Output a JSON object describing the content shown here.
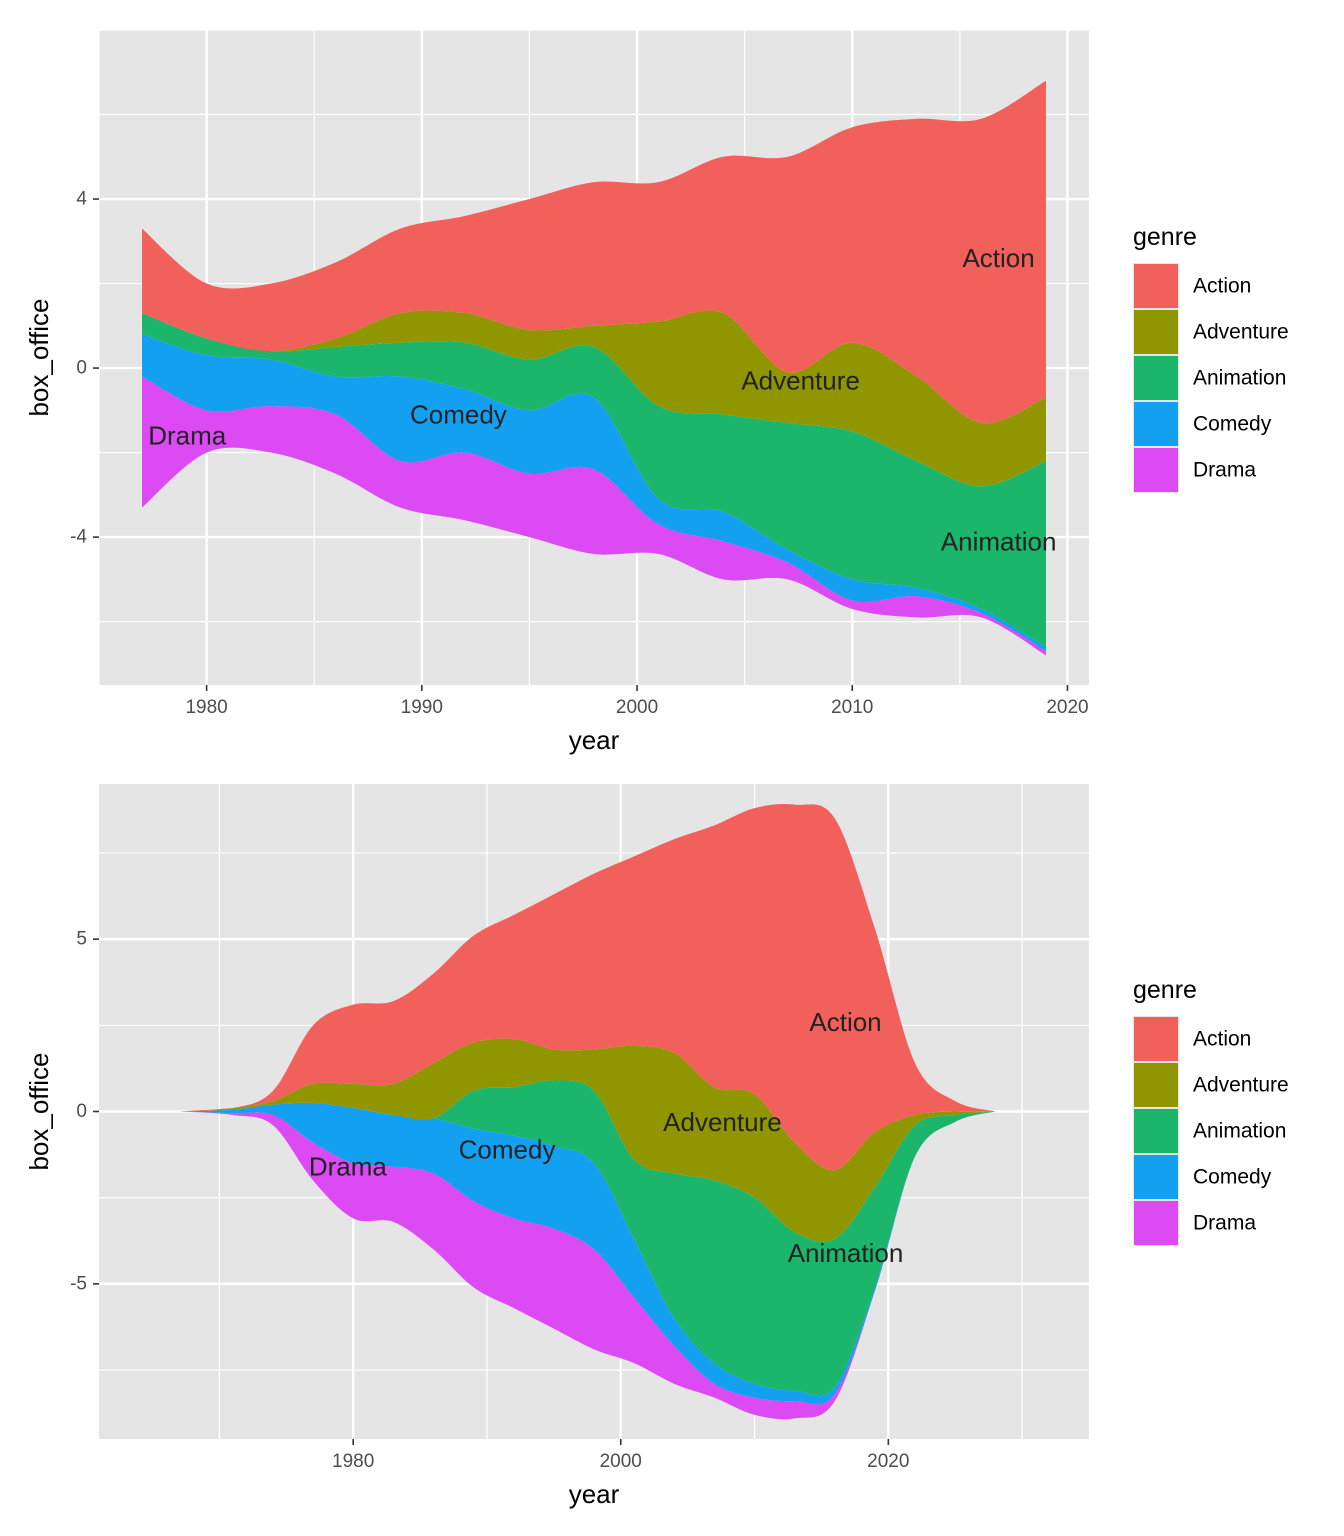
{
  "colors": {
    "Action": "#F2605C",
    "Adventure": "#8F9600",
    "Animation": "#1BB56B",
    "Comedy": "#13A0F1",
    "Drama": "#DB4AF2",
    "panel_bg": "#E5E5E5",
    "grid": "#FFFFFF"
  },
  "chart_data": [
    {
      "type": "area",
      "subtype": "streamgraph",
      "xlabel": "year",
      "ylabel": "box_office",
      "xlim": [
        1975,
        2021
      ],
      "ylim": [
        -7.5,
        8
      ],
      "x_ticks": [
        1980,
        1990,
        2000,
        2010,
        2020
      ],
      "y_ticks": [
        -4,
        0,
        4
      ],
      "grid": true,
      "legend": {
        "title": "genre",
        "position": "right",
        "entries": [
          "Action",
          "Adventure",
          "Animation",
          "Comedy",
          "Drama"
        ]
      },
      "annotations": [
        {
          "text": "Action",
          "x": 2016.8,
          "y": 2.6
        },
        {
          "text": "Adventure",
          "x": 2007.6,
          "y": -0.3
        },
        {
          "text": "Animation",
          "x": 2016.8,
          "y": -4.1
        },
        {
          "text": "Comedy",
          "x": 1991.7,
          "y": -1.1
        },
        {
          "text": "Drama",
          "x": 1979.1,
          "y": -1.6
        }
      ],
      "x": [
        1977,
        1980,
        1983,
        1986,
        1989,
        1992,
        1995,
        1998,
        2001,
        2004,
        2007,
        2010,
        2013,
        2016,
        2019
      ],
      "boundaries": [
        [
          -3.3,
          -2.0,
          -2.0,
          -2.5,
          -3.3,
          -3.6,
          -4.0,
          -4.4,
          -4.4,
          -5.0,
          -5.0,
          -5.7,
          -5.9,
          -5.9,
          -6.8
        ],
        [
          -0.2,
          -1.0,
          -0.9,
          -1.1,
          -2.2,
          -2.0,
          -2.5,
          -2.4,
          -3.7,
          -4.1,
          -4.6,
          -5.5,
          -5.4,
          -5.8,
          -6.7
        ],
        [
          0.8,
          0.3,
          0.2,
          -0.2,
          -0.2,
          -0.5,
          -1.0,
          -0.7,
          -3.1,
          -3.4,
          -4.3,
          -5.0,
          -5.2,
          -5.7,
          -6.6
        ],
        [
          1.3,
          0.7,
          0.4,
          0.5,
          0.6,
          0.6,
          0.2,
          0.5,
          -0.9,
          -1.1,
          -1.3,
          -1.5,
          -2.2,
          -2.8,
          -2.2
        ],
        [
          1.3,
          0.7,
          0.4,
          0.7,
          1.3,
          1.3,
          0.9,
          1.0,
          1.1,
          1.3,
          -0.1,
          0.6,
          -0.2,
          -1.3,
          -0.7
        ],
        [
          3.3,
          2.0,
          2.0,
          2.5,
          3.3,
          3.6,
          4.0,
          4.4,
          4.4,
          5.0,
          5.0,
          5.7,
          5.9,
          5.9,
          6.8
        ]
      ]
    },
    {
      "type": "area",
      "subtype": "streamgraph",
      "xlabel": "year",
      "ylabel": "box_office",
      "xlim": [
        1961,
        2035
      ],
      "ylim": [
        -9.5,
        9.5
      ],
      "x_ticks": [
        1980,
        2000,
        2020
      ],
      "y_ticks": [
        -5,
        0,
        5
      ],
      "grid": true,
      "legend": {
        "title": "genre",
        "position": "right",
        "entries": [
          "Action",
          "Adventure",
          "Animation",
          "Comedy",
          "Drama"
        ]
      },
      "annotations": [
        {
          "text": "Action",
          "x": 2016.8,
          "y": 2.6
        },
        {
          "text": "Adventure",
          "x": 2007.6,
          "y": -0.3
        },
        {
          "text": "Animation",
          "x": 2016.8,
          "y": -4.1
        },
        {
          "text": "Comedy",
          "x": 1991.5,
          "y": -1.1
        },
        {
          "text": "Drama",
          "x": 1979.6,
          "y": -1.6
        }
      ],
      "x": [
        1967,
        1971,
        1974,
        1977,
        1980,
        1983,
        1986,
        1989,
        1992,
        1995,
        1998,
        2001,
        2004,
        2007,
        2010,
        2013,
        2016,
        2019,
        2022,
        2025,
        2028
      ],
      "boundaries": [
        [
          0,
          -0.1,
          -0.4,
          -2.0,
          -3.1,
          -3.2,
          -4.0,
          -5.1,
          -5.7,
          -6.3,
          -6.9,
          -7.3,
          -7.9,
          -8.3,
          -8.8,
          -8.9,
          -8.4,
          -5.2,
          -1.3,
          -0.3,
          0
        ],
        [
          0,
          -0.05,
          -0.1,
          -0.9,
          -1.5,
          -1.6,
          -1.8,
          -2.6,
          -3.1,
          -3.4,
          -4.0,
          -5.4,
          -6.8,
          -7.9,
          -8.3,
          -8.4,
          -8.2,
          -5.2,
          -1.3,
          -0.3,
          0
        ],
        [
          0,
          0.05,
          0.2,
          0.25,
          0.1,
          -0.1,
          -0.2,
          -0.5,
          -0.7,
          -1.0,
          -1.5,
          -3.7,
          -6.0,
          -7.3,
          -7.9,
          -8.1,
          -8.0,
          -5.1,
          -1.3,
          -0.3,
          0
        ],
        [
          0,
          0.05,
          0.2,
          0.25,
          0.1,
          -0.1,
          -0.2,
          0.6,
          0.7,
          0.9,
          0.6,
          -1.4,
          -1.8,
          -2.0,
          -2.5,
          -3.5,
          -3.7,
          -2.2,
          -0.4,
          -0.1,
          0
        ],
        [
          0,
          0.1,
          0.3,
          0.8,
          0.8,
          0.8,
          1.4,
          2.0,
          2.1,
          1.8,
          1.8,
          1.9,
          1.7,
          0.7,
          0.5,
          -0.9,
          -1.7,
          -0.6,
          -0.1,
          0,
          0
        ],
        [
          0,
          0.1,
          0.6,
          2.5,
          3.1,
          3.2,
          4.0,
          5.1,
          5.7,
          6.3,
          6.9,
          7.4,
          7.9,
          8.3,
          8.8,
          8.9,
          8.5,
          5.3,
          1.4,
          0.3,
          0
        ]
      ]
    }
  ]
}
